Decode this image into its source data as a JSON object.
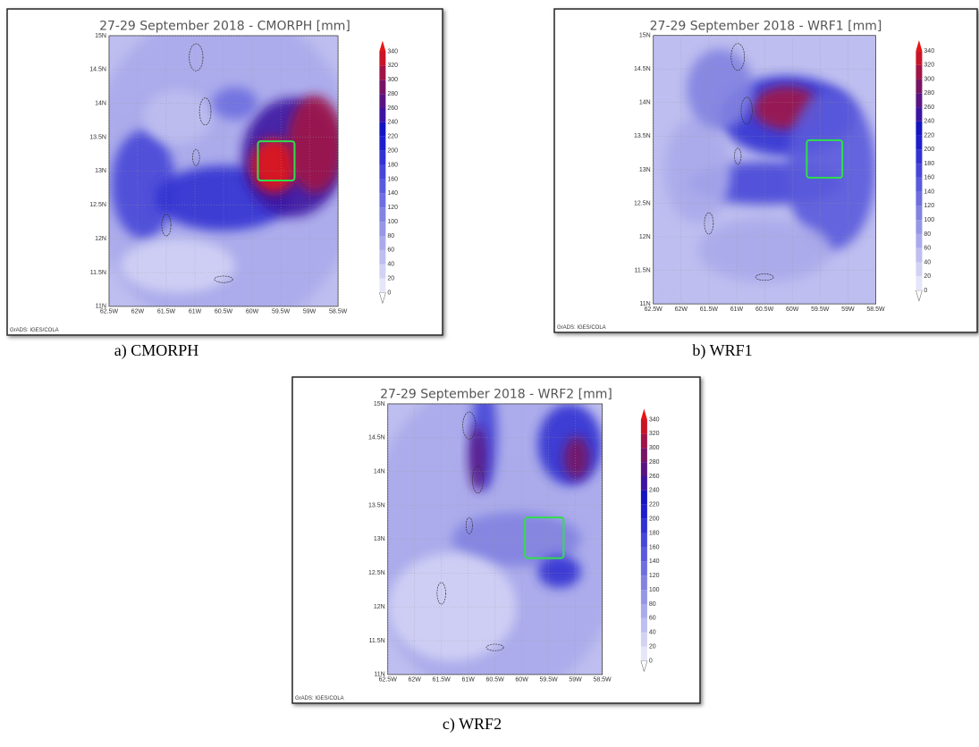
{
  "panels": [
    {
      "title": "27-29 September 2018 - CMORPH [mm]",
      "credit": "GrADS: IGES/COLA",
      "caption": "a) CMORPH"
    },
    {
      "title": "27-29 September 2018 - WRF1 [mm]",
      "credit": "GrADS: IGES/COLA",
      "caption": "b) WRF1"
    },
    {
      "title": "27-29 September 2018 - WRF2 [mm]",
      "credit": "GrADS: IGES/COLA",
      "caption": "c) WRF2"
    }
  ],
  "lat_labels": [
    "15N",
    "14.5N",
    "14N",
    "13.5N",
    "13N",
    "12.5N",
    "12N",
    "11.5N",
    "11N"
  ],
  "lon_labels": [
    "62.5W",
    "62W",
    "61.5W",
    "61W",
    "60.5W",
    "60W",
    "59.5W",
    "59W",
    "58.5W"
  ],
  "colorbar_levels": [
    0,
    20,
    40,
    60,
    80,
    100,
    120,
    140,
    160,
    180,
    200,
    220,
    240,
    260,
    280,
    300,
    320,
    340
  ]
}
